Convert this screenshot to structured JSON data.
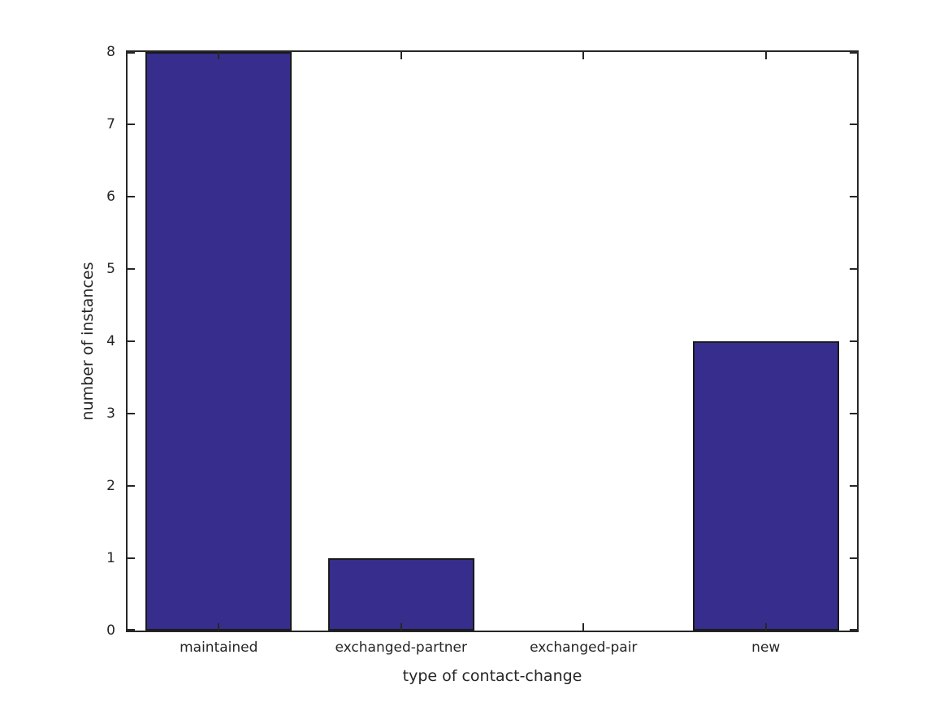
{
  "figure": {
    "background": "#ffffff",
    "text_color": "#262626",
    "axis_color": "#262626"
  },
  "chart_data": {
    "type": "bar",
    "categories": [
      "maintained",
      "exchanged-partner",
      "exchanged-pair",
      "new"
    ],
    "values": [
      8,
      1,
      0,
      4
    ],
    "xlabel": "type of contact-change",
    "ylabel": "number of instances",
    "ylim": [
      0,
      8
    ],
    "yticks": [
      0,
      1,
      2,
      3,
      4,
      5,
      6,
      7,
      8
    ],
    "bar_color": "#36 2D8C",
    "bar_edge_color": "#1a1a1a",
    "bar_rel_width": 0.8,
    "grid": false,
    "tick_direction": "in",
    "box": true
  }
}
